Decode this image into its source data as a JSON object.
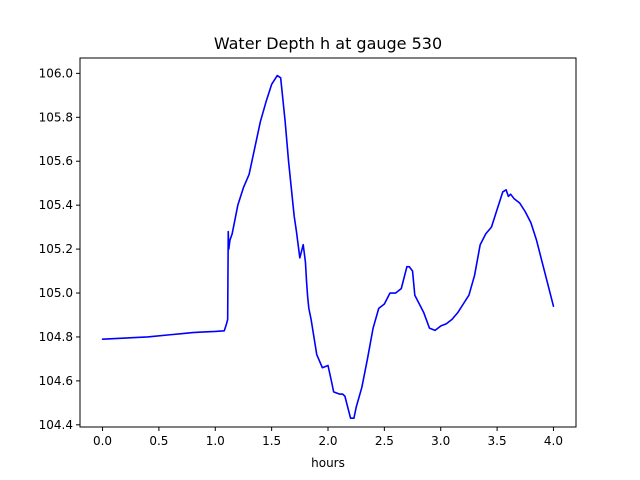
{
  "chart_data": {
    "type": "line",
    "title": "Water Depth h at gauge 530",
    "xlabel": "hours",
    "ylabel": "",
    "xlim": [
      -0.2,
      4.2
    ],
    "ylim": [
      104.39,
      106.07
    ],
    "xticks": [
      0.0,
      0.5,
      1.0,
      1.5,
      2.0,
      2.5,
      3.0,
      3.5,
      4.0
    ],
    "xtick_labels": [
      "0.0",
      "0.5",
      "1.0",
      "1.5",
      "2.0",
      "2.5",
      "3.0",
      "3.5",
      "4.0"
    ],
    "yticks": [
      104.4,
      104.6,
      104.8,
      105.0,
      105.2,
      105.4,
      105.6,
      105.8,
      106.0
    ],
    "ytick_labels": [
      "104.4",
      "104.6",
      "104.8",
      "105.0",
      "105.2",
      "105.4",
      "105.6",
      "105.8",
      "106.0"
    ],
    "grid": false,
    "series": [
      {
        "color": "#0000ff",
        "x": [
          0.0,
          0.2,
          0.4,
          0.6,
          0.7,
          0.8,
          0.9,
          1.0,
          1.08,
          1.1,
          1.11,
          1.115,
          1.12,
          1.13,
          1.15,
          1.2,
          1.25,
          1.3,
          1.35,
          1.4,
          1.45,
          1.5,
          1.55,
          1.58,
          1.6,
          1.62,
          1.65,
          1.7,
          1.72,
          1.75,
          1.78,
          1.8,
          1.81,
          1.82,
          1.83,
          1.85,
          1.9,
          1.95,
          2.0,
          2.03,
          2.05,
          2.1,
          2.13,
          2.15,
          2.2,
          2.23,
          2.25,
          2.3,
          2.35,
          2.4,
          2.45,
          2.5,
          2.55,
          2.6,
          2.65,
          2.69,
          2.7,
          2.72,
          2.75,
          2.77,
          2.8,
          2.85,
          2.9,
          2.95,
          3.0,
          3.05,
          3.1,
          3.15,
          3.2,
          3.25,
          3.3,
          3.35,
          3.4,
          3.45,
          3.5,
          3.55,
          3.58,
          3.6,
          3.62,
          3.65,
          3.7,
          3.75,
          3.8,
          3.85,
          3.9,
          3.95,
          4.0
        ],
        "y": [
          104.79,
          104.795,
          104.8,
          104.81,
          104.815,
          104.82,
          104.823,
          104.825,
          104.828,
          104.86,
          104.88,
          105.28,
          105.2,
          105.24,
          105.27,
          105.4,
          105.48,
          105.54,
          105.66,
          105.78,
          105.87,
          105.95,
          105.99,
          105.98,
          105.88,
          105.78,
          105.6,
          105.35,
          105.28,
          105.16,
          105.22,
          105.14,
          105.05,
          104.98,
          104.93,
          104.88,
          104.72,
          104.66,
          104.67,
          104.6,
          104.55,
          104.54,
          104.54,
          104.53,
          104.43,
          104.43,
          104.48,
          104.57,
          104.7,
          104.84,
          104.93,
          104.95,
          105.0,
          105.0,
          105.02,
          105.1,
          105.12,
          105.12,
          105.1,
          104.99,
          104.96,
          104.91,
          104.84,
          104.83,
          104.85,
          104.86,
          104.88,
          104.91,
          104.95,
          104.99,
          105.08,
          105.22,
          105.27,
          105.3,
          105.38,
          105.46,
          105.47,
          105.44,
          105.45,
          105.43,
          105.41,
          105.37,
          105.32,
          105.24,
          105.14,
          105.04,
          104.94
        ]
      }
    ]
  }
}
